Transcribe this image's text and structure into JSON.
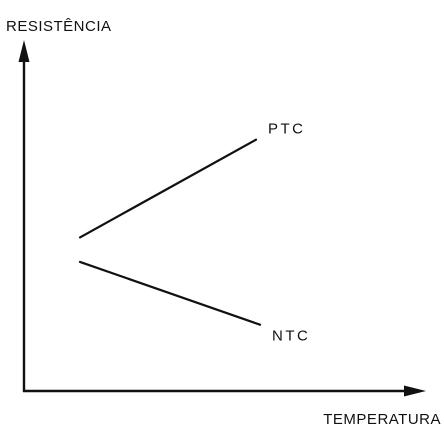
{
  "chart_data": {
    "type": "line",
    "title": "",
    "xlabel": "TEMPERATURA",
    "ylabel": "RESISTÊNCIA",
    "xlim": [
      0,
      10
    ],
    "ylim": [
      0,
      10
    ],
    "grid": false,
    "legend": "none",
    "series": [
      {
        "name": "PTC",
        "x": [
          1.4,
          5.8
        ],
        "y": [
          4.4,
          7.2
        ]
      },
      {
        "name": "NTC",
        "x": [
          1.4,
          5.9
        ],
        "y": [
          3.7,
          1.9
        ]
      }
    ],
    "colors": {
      "line": "#111111",
      "axis": "#111111",
      "background": "#ffffff"
    }
  }
}
